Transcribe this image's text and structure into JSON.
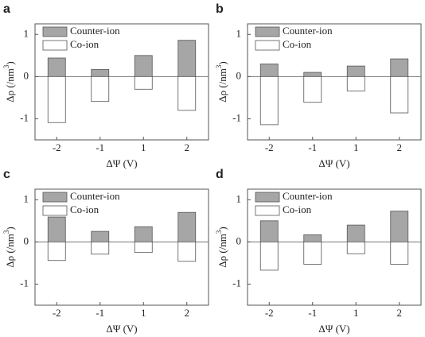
{
  "chart_data": [
    {
      "type": "bar",
      "label": "a",
      "xlabel": "ΔΨ (V)",
      "ylabel": "Δρ (/nm",
      "ylabel_sup": "3",
      "ylabel_end": ")",
      "categories": [
        "-2",
        "-1",
        "1",
        "2"
      ],
      "ylim": [
        -1.5,
        1.25
      ],
      "yticks": [
        -1,
        0,
        1
      ],
      "legend": "upper left",
      "series": [
        {
          "name": "Counter-ion",
          "color": "#a6a6a6",
          "values": [
            0.44,
            0.17,
            0.5,
            0.86
          ]
        },
        {
          "name": "Co-ion",
          "color": "#ffffff",
          "values": [
            -1.09,
            -0.59,
            -0.3,
            -0.8
          ]
        }
      ]
    },
    {
      "type": "bar",
      "label": "b",
      "xlabel": "ΔΨ (V)",
      "ylabel": "Δρ (/nm",
      "ylabel_sup": "3",
      "ylabel_end": ")",
      "categories": [
        "-2",
        "-1",
        "1",
        "2"
      ],
      "ylim": [
        -1.5,
        1.25
      ],
      "yticks": [
        -1,
        0,
        1
      ],
      "legend": "upper left",
      "series": [
        {
          "name": "Counter-ion",
          "color": "#a6a6a6",
          "values": [
            0.3,
            0.1,
            0.25,
            0.42
          ]
        },
        {
          "name": "Co-ion",
          "color": "#ffffff",
          "values": [
            -1.14,
            -0.61,
            -0.34,
            -0.86
          ]
        }
      ]
    },
    {
      "type": "bar",
      "label": "c",
      "xlabel": "ΔΨ (V)",
      "ylabel": "Δρ (/nm",
      "ylabel_sup": "3",
      "ylabel_end": ")",
      "categories": [
        "-2",
        "-1",
        "1",
        "2"
      ],
      "ylim": [
        -1.5,
        1.25
      ],
      "yticks": [
        -1,
        0,
        1
      ],
      "legend": "upper left",
      "series": [
        {
          "name": "Counter-ion",
          "color": "#a6a6a6",
          "values": [
            0.59,
            0.25,
            0.36,
            0.7
          ]
        },
        {
          "name": "Co-ion",
          "color": "#ffffff",
          "values": [
            -0.44,
            -0.29,
            -0.25,
            -0.46
          ]
        }
      ]
    },
    {
      "type": "bar",
      "label": "d",
      "xlabel": "ΔΨ (V)",
      "ylabel": "Δρ (/nm",
      "ylabel_sup": "3",
      "ylabel_end": ")",
      "categories": [
        "-2",
        "-1",
        "1",
        "2"
      ],
      "ylim": [
        -1.5,
        1.25
      ],
      "yticks": [
        -1,
        0,
        1
      ],
      "legend": "upper left",
      "series": [
        {
          "name": "Counter-ion",
          "color": "#a6a6a6",
          "values": [
            0.5,
            0.17,
            0.4,
            0.73
          ]
        },
        {
          "name": "Co-ion",
          "color": "#ffffff",
          "values": [
            -0.67,
            -0.53,
            -0.28,
            -0.53
          ]
        }
      ]
    }
  ]
}
